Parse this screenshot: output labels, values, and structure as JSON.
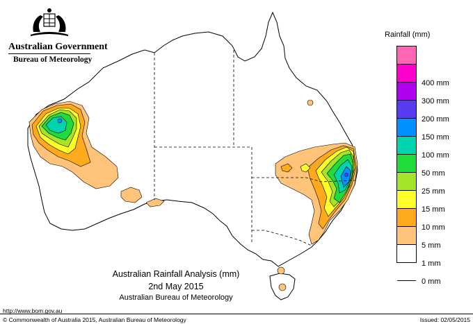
{
  "header": {
    "government": "Australian Government",
    "bureau": "Bureau of Meteorology"
  },
  "legend": {
    "title": "Rainfall (mm)",
    "bands": [
      {
        "label": "",
        "color": "#ff66b3"
      },
      {
        "label": "400 mm",
        "color": "#ff00cc"
      },
      {
        "label": "300 mm",
        "color": "#b000f0"
      },
      {
        "label": "200 mm",
        "color": "#5a3cf0"
      },
      {
        "label": "150 mm",
        "color": "#0090ff"
      },
      {
        "label": "100 mm",
        "color": "#00d3b0"
      },
      {
        "label": "50 mm",
        "color": "#1fdc3c"
      },
      {
        "label": "25 mm",
        "color": "#a6e42a"
      },
      {
        "label": "15 mm",
        "color": "#ffff2a"
      },
      {
        "label": "10 mm",
        "color": "#ffa91c"
      },
      {
        "label": "5 mm",
        "color": "#ffc47a"
      },
      {
        "label": "1 mm",
        "color": "#ffffff"
      },
      {
        "label": "0 mm",
        "color": "#ffffff"
      }
    ]
  },
  "map": {
    "title": "Australian Rainfall Analysis (mm)",
    "date": "2nd May 2015",
    "organisation": "Australian Bureau of Meteorology"
  },
  "footer": {
    "url": "http://www.bom.gov.au",
    "copyright": "© Commonwealth of Australia 2015, Australian Bureau of Meteorology",
    "issued": "Issued: 02/05/2015"
  },
  "colors": {
    "land": "#ffffff",
    "outline": "#000000",
    "rain_1mm": "#ffc47a",
    "rain_5mm": "#ffa91c",
    "rain_10mm": "#ffff2a",
    "rain_15mm": "#a6e42a",
    "rain_25mm": "#1fdc3c",
    "rain_50mm": "#00d3b0",
    "rain_100mm": "#0090ff",
    "rain_150mm": "#5a3cf0"
  }
}
